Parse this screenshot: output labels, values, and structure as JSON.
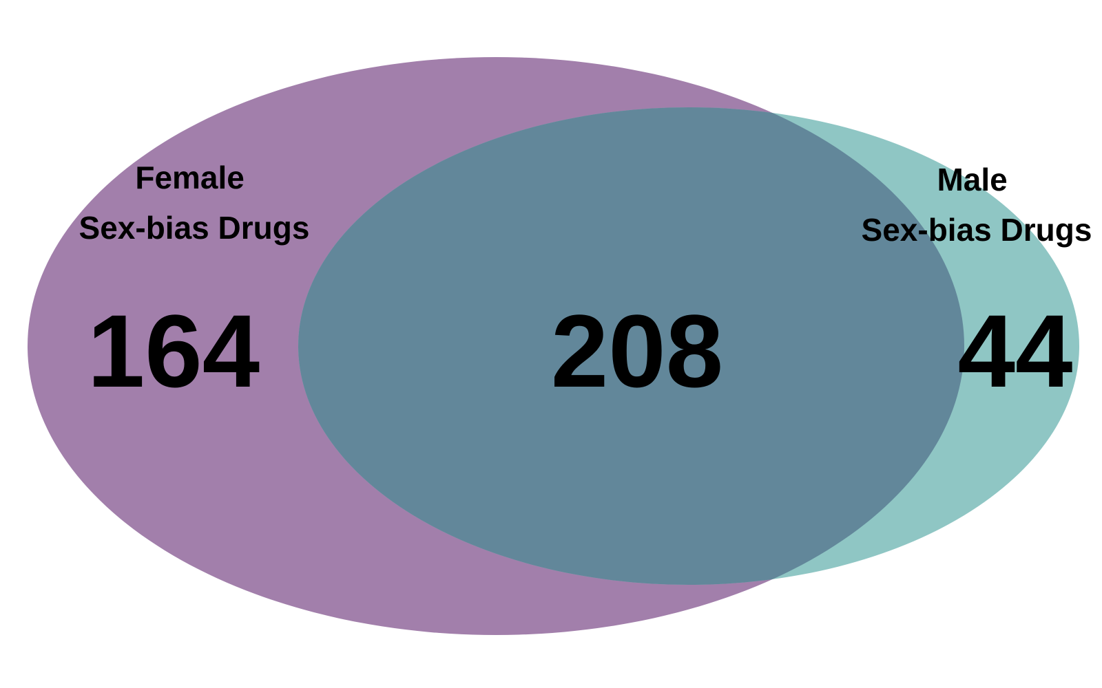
{
  "venn": {
    "sets": [
      {
        "id": "female",
        "label_line1": "Female",
        "label_line2": "Sex-bias Drugs",
        "only_count": "164",
        "color": "#a27fab"
      },
      {
        "id": "male",
        "label_line1": "Male",
        "label_line2": "Sex-bias Drugs",
        "only_count": "44",
        "color": "#8fc6c4"
      }
    ],
    "overlap": {
      "count": "208",
      "color": "#62879a"
    }
  }
}
